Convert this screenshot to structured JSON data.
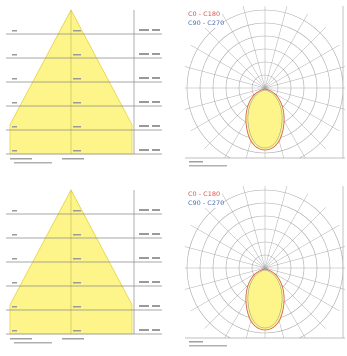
{
  "chart_data": [
    {
      "type": "area",
      "panel": "cone-1",
      "beam": {
        "half_angle_deg": 28
      },
      "rows": 6,
      "gridlines": true,
      "colors": {
        "fill": "#fdf589",
        "stroke": "#e6d44c",
        "grid": "#8a8a8a"
      }
    },
    {
      "type": "line",
      "panel": "polar-1",
      "legend": [
        "C0 - C180",
        "C90 - C270"
      ],
      "legend_position": "top-left",
      "colors": {
        "c0_c180": "#d9534f",
        "c90_c270": "#4a6fb5",
        "fill": "#fdf589",
        "grid": "#aaaaaa"
      },
      "rings": 6,
      "spokes_deg": 15,
      "grid": true
    },
    {
      "type": "area",
      "panel": "cone-2",
      "beam": {
        "half_angle_deg": 28
      },
      "rows": 6,
      "gridlines": true,
      "colors": {
        "fill": "#fdf589",
        "stroke": "#e6d44c",
        "grid": "#8a8a8a"
      }
    },
    {
      "type": "line",
      "panel": "polar-2",
      "legend": [
        "C0 - C180",
        "C90 - C270"
      ],
      "legend_position": "top-left",
      "colors": {
        "c0_c180": "#d9534f",
        "c90_c270": "#4a6fb5",
        "fill": "#fdf589",
        "grid": "#aaaaaa"
      },
      "rings": 6,
      "spokes_deg": 15,
      "grid": true
    }
  ]
}
